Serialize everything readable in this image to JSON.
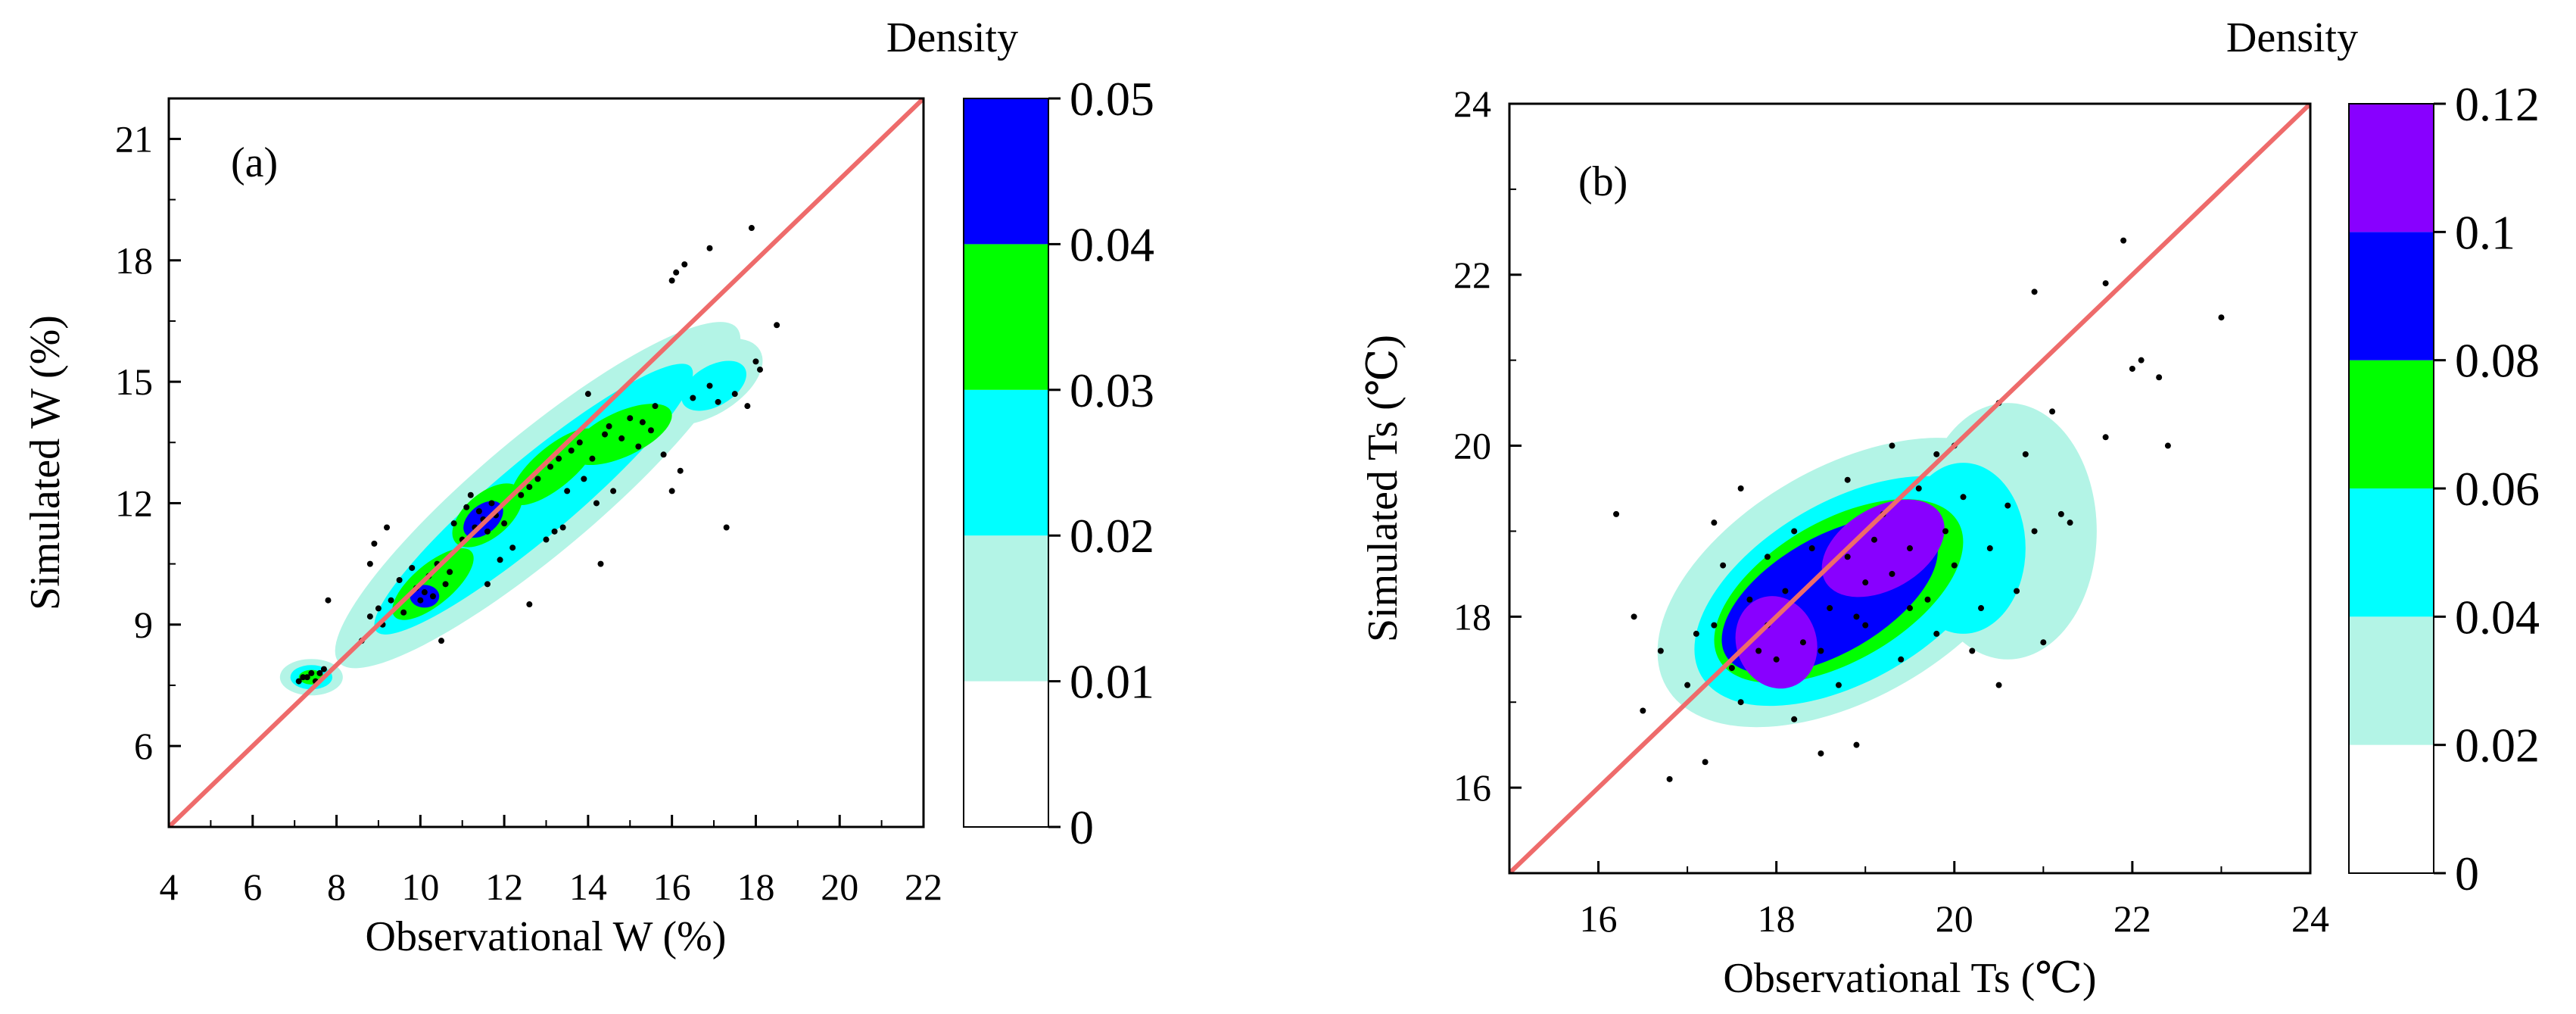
{
  "chart_data": [
    {
      "type": "scatter",
      "title": "",
      "panel_label": "(a)",
      "xlabel": "Observational W (%)",
      "ylabel": "Simulated W (%)",
      "xlim": [
        4,
        22
      ],
      "ylim": [
        4,
        22
      ],
      "xticks": [
        4,
        6,
        8,
        10,
        12,
        14,
        16,
        18,
        20,
        22
      ],
      "yticks": [
        6,
        9,
        12,
        15,
        18,
        21
      ],
      "reference_line": {
        "from": [
          4,
          4
        ],
        "to": [
          22,
          22
        ],
        "color": "#ee6b6b"
      },
      "density_levels": [
        0,
        0.01,
        0.02,
        0.03,
        0.04,
        0.05
      ],
      "colorbar": {
        "title": "Density",
        "labels": [
          "0",
          "0.01",
          "0.02",
          "0.03",
          "0.04",
          "0.05"
        ],
        "colors": [
          "#ffffff",
          "#b3f4e6",
          "#00ffff",
          "#00ff00",
          "#0000ff"
        ]
      },
      "density_blobs": [
        {
          "cx": 7.4,
          "cy": 7.7,
          "rx": 0.75,
          "ry": 0.45,
          "angle": 0,
          "level": 1
        },
        {
          "cx": 12.8,
          "cy": 12.2,
          "rx": 6.2,
          "ry": 1.45,
          "angle": 40,
          "level": 1
        },
        {
          "cx": 16.8,
          "cy": 15.0,
          "rx": 1.5,
          "ry": 0.85,
          "angle": 30,
          "level": 1
        },
        {
          "cx": 7.4,
          "cy": 7.7,
          "rx": 0.5,
          "ry": 0.3,
          "angle": 0,
          "level": 2
        },
        {
          "cx": 12.7,
          "cy": 12.1,
          "rx": 4.9,
          "ry": 0.95,
          "angle": 40,
          "level": 2
        },
        {
          "cx": 17.0,
          "cy": 14.9,
          "rx": 0.85,
          "ry": 0.5,
          "angle": 30,
          "level": 2
        },
        {
          "cx": 7.4,
          "cy": 7.7,
          "rx": 0.3,
          "ry": 0.18,
          "angle": 0,
          "level": 3
        },
        {
          "cx": 10.3,
          "cy": 10.0,
          "rx": 1.2,
          "ry": 0.5,
          "angle": 40,
          "level": 3
        },
        {
          "cx": 11.6,
          "cy": 11.7,
          "rx": 1.0,
          "ry": 0.55,
          "angle": 40,
          "level": 3
        },
        {
          "cx": 13.2,
          "cy": 12.9,
          "rx": 1.3,
          "ry": 0.5,
          "angle": 40,
          "level": 3
        },
        {
          "cx": 14.8,
          "cy": 13.7,
          "rx": 1.3,
          "ry": 0.55,
          "angle": 25,
          "level": 3
        },
        {
          "cx": 10.1,
          "cy": 9.7,
          "rx": 0.35,
          "ry": 0.28,
          "angle": 0,
          "level": 4
        },
        {
          "cx": 11.5,
          "cy": 11.6,
          "rx": 0.55,
          "ry": 0.35,
          "angle": 40,
          "level": 4
        }
      ],
      "points": [
        [
          7.2,
          7.7
        ],
        [
          7.4,
          7.8
        ],
        [
          7.5,
          7.6
        ],
        [
          7.3,
          7.7
        ],
        [
          7.6,
          7.8
        ],
        [
          7.1,
          7.6
        ],
        [
          7.7,
          7.9
        ],
        [
          7.8,
          9.6
        ],
        [
          8.6,
          8.6
        ],
        [
          8.8,
          9.2
        ],
        [
          9.0,
          9.4
        ],
        [
          9.1,
          9.0
        ],
        [
          9.3,
          9.6
        ],
        [
          9.5,
          10.1
        ],
        [
          9.6,
          9.3
        ],
        [
          9.8,
          10.4
        ],
        [
          9.9,
          9.9
        ],
        [
          10.0,
          9.6
        ],
        [
          10.1,
          9.8
        ],
        [
          10.2,
          10.2
        ],
        [
          10.3,
          9.7
        ],
        [
          10.4,
          10.5
        ],
        [
          10.5,
          8.6
        ],
        [
          10.6,
          10.0
        ],
        [
          10.7,
          10.3
        ],
        [
          9.2,
          11.4
        ],
        [
          8.8,
          10.5
        ],
        [
          8.9,
          11.0
        ],
        [
          10.8,
          11.5
        ],
        [
          11.0,
          11.1
        ],
        [
          11.1,
          11.9
        ],
        [
          11.3,
          11.4
        ],
        [
          11.4,
          11.8
        ],
        [
          11.5,
          11.6
        ],
        [
          11.6,
          11.3
        ],
        [
          11.7,
          12.0
        ],
        [
          11.8,
          11.7
        ],
        [
          12.0,
          11.5
        ],
        [
          11.2,
          12.2
        ],
        [
          11.9,
          10.6
        ],
        [
          11.6,
          10.0
        ],
        [
          12.6,
          9.5
        ],
        [
          12.2,
          10.9
        ],
        [
          12.4,
          12.2
        ],
        [
          12.6,
          12.4
        ],
        [
          12.8,
          12.6
        ],
        [
          13.0,
          11.1
        ],
        [
          13.1,
          12.9
        ],
        [
          13.3,
          13.1
        ],
        [
          13.5,
          12.3
        ],
        [
          13.6,
          13.3
        ],
        [
          13.8,
          13.5
        ],
        [
          13.4,
          11.4
        ],
        [
          13.2,
          11.3
        ],
        [
          13.9,
          12.6
        ],
        [
          14.1,
          13.1
        ],
        [
          14.2,
          12.0
        ],
        [
          14.3,
          10.5
        ],
        [
          14.4,
          13.7
        ],
        [
          14.5,
          13.9
        ],
        [
          14.6,
          12.3
        ],
        [
          14.8,
          13.6
        ],
        [
          15.0,
          14.1
        ],
        [
          15.2,
          13.4
        ],
        [
          15.3,
          14.0
        ],
        [
          15.5,
          13.8
        ],
        [
          15.6,
          14.4
        ],
        [
          15.8,
          13.2
        ],
        [
          16.0,
          12.3
        ],
        [
          16.2,
          12.8
        ],
        [
          14.0,
          14.7
        ],
        [
          16.5,
          14.6
        ],
        [
          16.9,
          14.9
        ],
        [
          17.1,
          14.5
        ],
        [
          17.3,
          11.4
        ],
        [
          17.5,
          14.7
        ],
        [
          17.8,
          14.4
        ],
        [
          18.0,
          15.5
        ],
        [
          18.1,
          15.3
        ],
        [
          18.5,
          16.4
        ],
        [
          16.0,
          17.5
        ],
        [
          16.1,
          17.7
        ],
        [
          16.3,
          17.9
        ],
        [
          16.9,
          18.3
        ],
        [
          17.9,
          18.8
        ]
      ],
      "points_color": "#000000"
    },
    {
      "type": "scatter",
      "title": "",
      "panel_label": "(b)",
      "xlabel": "Observational Ts (℃)",
      "ylabel": "Simulated Ts (℃)",
      "xlim": [
        15,
        24
      ],
      "ylim": [
        15,
        24
      ],
      "xticks": [
        16,
        18,
        20,
        22,
        24
      ],
      "yticks": [
        16,
        18,
        20,
        22,
        24
      ],
      "reference_line": {
        "from": [
          15,
          15
        ],
        "to": [
          24,
          24
        ],
        "color": "#ee6b6b"
      },
      "density_levels": [
        0,
        0.02,
        0.04,
        0.06,
        0.08,
        0.1,
        0.12
      ],
      "colorbar": {
        "title": "Density",
        "labels": [
          "0",
          "0.02",
          "0.04",
          "0.06",
          "0.08",
          "0.1",
          "0.12"
        ],
        "colors": [
          "#ffffff",
          "#b3f4e6",
          "#00ffff",
          "#00ff00",
          "#0000ff",
          "#8800ff"
        ]
      },
      "density_blobs": [
        {
          "cx": 18.8,
          "cy": 18.4,
          "rx": 2.35,
          "ry": 1.35,
          "angle": 30,
          "level": 1
        },
        {
          "cx": 20.6,
          "cy": 19.0,
          "rx": 1.0,
          "ry": 1.5,
          "angle": 0,
          "level": 1
        },
        {
          "cx": 18.8,
          "cy": 18.3,
          "rx": 1.9,
          "ry": 1.05,
          "angle": 30,
          "level": 2
        },
        {
          "cx": 20.1,
          "cy": 18.8,
          "rx": 0.7,
          "ry": 1.0,
          "angle": 0,
          "level": 2
        },
        {
          "cx": 18.7,
          "cy": 18.3,
          "rx": 1.55,
          "ry": 0.82,
          "angle": 30,
          "level": 3
        },
        {
          "cx": 18.6,
          "cy": 18.25,
          "rx": 1.35,
          "ry": 0.68,
          "angle": 30,
          "level": 4
        },
        {
          "cx": 18.0,
          "cy": 17.7,
          "rx": 0.45,
          "ry": 0.55,
          "angle": 20,
          "level": 5
        },
        {
          "cx": 19.2,
          "cy": 18.8,
          "rx": 0.75,
          "ry": 0.48,
          "angle": 30,
          "level": 5
        }
      ],
      "points": [
        [
          16.2,
          19.2
        ],
        [
          16.4,
          18.0
        ],
        [
          16.5,
          16.9
        ],
        [
          16.7,
          17.6
        ],
        [
          16.8,
          16.1
        ],
        [
          17.0,
          17.2
        ],
        [
          17.1,
          17.8
        ],
        [
          17.2,
          16.3
        ],
        [
          17.3,
          17.9
        ],
        [
          17.4,
          18.6
        ],
        [
          17.5,
          17.4
        ],
        [
          17.6,
          17.0
        ],
        [
          17.7,
          18.2
        ],
        [
          17.8,
          17.6
        ],
        [
          17.9,
          17.9
        ],
        [
          18.0,
          17.5
        ],
        [
          18.1,
          18.3
        ],
        [
          18.2,
          16.8
        ],
        [
          18.3,
          17.7
        ],
        [
          18.4,
          18.8
        ],
        [
          18.5,
          16.4
        ],
        [
          18.6,
          18.1
        ],
        [
          18.7,
          17.2
        ],
        [
          18.8,
          18.7
        ],
        [
          18.9,
          16.5
        ],
        [
          19.0,
          17.9
        ],
        [
          19.1,
          18.9
        ],
        [
          19.2,
          19.2
        ],
        [
          19.3,
          18.5
        ],
        [
          19.4,
          17.5
        ],
        [
          19.5,
          18.8
        ],
        [
          19.6,
          19.5
        ],
        [
          19.7,
          18.2
        ],
        [
          19.8,
          17.8
        ],
        [
          19.9,
          19.0
        ],
        [
          20.0,
          18.6
        ],
        [
          20.1,
          19.4
        ],
        [
          20.2,
          17.6
        ],
        [
          20.3,
          18.1
        ],
        [
          20.4,
          18.8
        ],
        [
          20.5,
          17.2
        ],
        [
          20.6,
          19.3
        ],
        [
          20.7,
          18.3
        ],
        [
          20.8,
          19.9
        ],
        [
          20.9,
          19.0
        ],
        [
          21.0,
          17.7
        ],
        [
          21.1,
          20.4
        ],
        [
          21.2,
          19.2
        ],
        [
          21.3,
          19.1
        ],
        [
          20.5,
          20.5
        ],
        [
          20.0,
          20.0
        ],
        [
          19.8,
          19.9
        ],
        [
          17.3,
          19.1
        ],
        [
          17.6,
          19.5
        ],
        [
          18.8,
          19.6
        ],
        [
          19.3,
          20.0
        ],
        [
          17.9,
          18.7
        ],
        [
          18.2,
          19.0
        ],
        [
          19.0,
          18.4
        ],
        [
          19.5,
          18.1
        ],
        [
          18.5,
          17.6
        ],
        [
          18.9,
          18.0
        ],
        [
          20.9,
          21.8
        ],
        [
          21.7,
          21.9
        ],
        [
          21.9,
          22.4
        ],
        [
          22.0,
          20.9
        ],
        [
          22.1,
          21.0
        ],
        [
          22.3,
          20.8
        ],
        [
          22.4,
          20.0
        ],
        [
          23.0,
          21.5
        ],
        [
          21.7,
          20.1
        ]
      ],
      "points_color": "#000000"
    }
  ]
}
